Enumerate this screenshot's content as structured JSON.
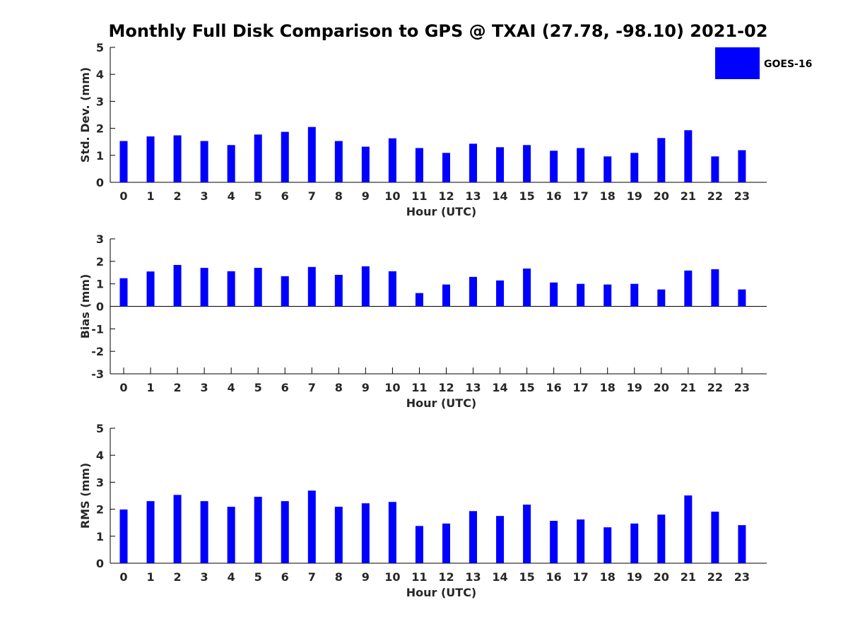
{
  "title": "Monthly Full Disk Comparison to GPS @ TXAI (27.78, -98.10) 2021-02",
  "legend": {
    "label": "GOES-16",
    "color": "#0000ff",
    "placement": "top-right"
  },
  "chart_data": [
    {
      "type": "bar",
      "xlabel": "Hour (UTC)",
      "ylabel": "Std. Dev. (mm)",
      "ylim": [
        0,
        5
      ],
      "yticks": [
        0,
        1,
        2,
        3,
        4,
        5
      ],
      "categories": [
        "0",
        "1",
        "2",
        "3",
        "4",
        "5",
        "6",
        "7",
        "8",
        "9",
        "10",
        "11",
        "12",
        "13",
        "14",
        "15",
        "16",
        "17",
        "18",
        "19",
        "20",
        "21",
        "22",
        "23"
      ],
      "series": [
        {
          "name": "GOES-16",
          "color": "#0000ff",
          "values": [
            1.53,
            1.7,
            1.74,
            1.53,
            1.38,
            1.77,
            1.87,
            2.05,
            1.53,
            1.32,
            1.63,
            1.27,
            1.09,
            1.43,
            1.3,
            1.38,
            1.17,
            1.27,
            0.96,
            1.09,
            1.64,
            1.93,
            0.96,
            1.19
          ]
        }
      ]
    },
    {
      "type": "bar",
      "xlabel": "Hour (UTC)",
      "ylabel": "Bias (mm)",
      "ylim": [
        -3,
        3
      ],
      "yticks": [
        -3,
        -2,
        -1,
        0,
        1,
        2,
        3
      ],
      "categories": [
        "0",
        "1",
        "2",
        "3",
        "4",
        "5",
        "6",
        "7",
        "8",
        "9",
        "10",
        "11",
        "12",
        "13",
        "14",
        "15",
        "16",
        "17",
        "18",
        "19",
        "20",
        "21",
        "22",
        "23"
      ],
      "series": [
        {
          "name": "GOES-16",
          "color": "#0000ff",
          "values": [
            1.25,
            1.55,
            1.84,
            1.71,
            1.56,
            1.71,
            1.34,
            1.75,
            1.4,
            1.78,
            1.56,
            0.59,
            0.97,
            1.31,
            1.15,
            1.68,
            1.06,
            1.0,
            0.97,
            1.0,
            0.75,
            1.59,
            1.65,
            0.75
          ]
        }
      ]
    },
    {
      "type": "bar",
      "xlabel": "Hour (UTC)",
      "ylabel": "RMS (mm)",
      "ylim": [
        0,
        5
      ],
      "yticks": [
        0,
        1,
        2,
        3,
        4,
        5
      ],
      "categories": [
        "0",
        "1",
        "2",
        "3",
        "4",
        "5",
        "6",
        "7",
        "8",
        "9",
        "10",
        "11",
        "12",
        "13",
        "14",
        "15",
        "16",
        "17",
        "18",
        "19",
        "20",
        "21",
        "22",
        "23"
      ],
      "series": [
        {
          "name": "GOES-16",
          "color": "#0000ff",
          "values": [
            1.99,
            2.3,
            2.53,
            2.3,
            2.09,
            2.46,
            2.3,
            2.69,
            2.09,
            2.22,
            2.27,
            1.38,
            1.47,
            1.93,
            1.75,
            2.17,
            1.57,
            1.62,
            1.33,
            1.47,
            1.8,
            2.51,
            1.91,
            1.41
          ]
        }
      ]
    }
  ]
}
